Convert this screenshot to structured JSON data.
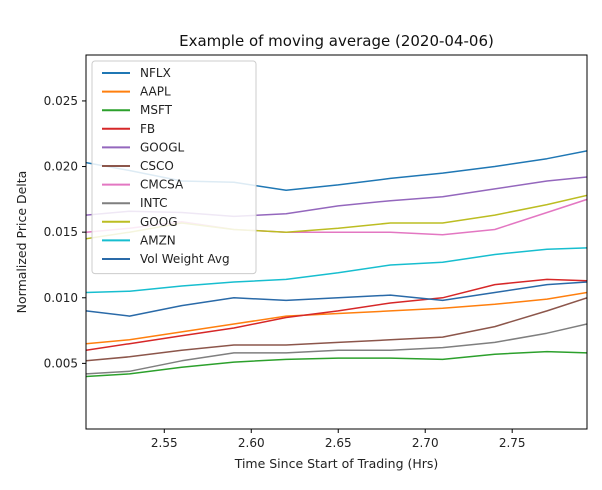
{
  "chart_data": {
    "type": "line",
    "title": "Example of moving average (2020-04-06)",
    "xlabel": "Time Since Start of Trading (Hrs)",
    "ylabel": "Normalized Price Delta",
    "xlim": [
      2.505,
      2.793
    ],
    "ylim": [
      0.0,
      0.0285
    ],
    "xticks": [
      2.55,
      2.6,
      2.65,
      2.7,
      2.75
    ],
    "xtick_labels": [
      "2.55",
      "2.60",
      "2.65",
      "2.70",
      "2.75"
    ],
    "yticks": [
      0.005,
      0.01,
      0.015,
      0.02,
      0.025
    ],
    "ytick_labels": [
      "0.005",
      "0.010",
      "0.015",
      "0.020",
      "0.025"
    ],
    "grid": false,
    "legend_position": "top-left",
    "series": [
      {
        "name": "NFLX",
        "color": "#1f77b4",
        "x": [
          2.505,
          2.53,
          2.56,
          2.59,
          2.62,
          2.65,
          2.68,
          2.71,
          2.74,
          2.77,
          2.793
        ],
        "y": [
          0.0203,
          0.0197,
          0.0189,
          0.0188,
          0.0182,
          0.0186,
          0.0191,
          0.0195,
          0.02,
          0.0206,
          0.0212
        ]
      },
      {
        "name": "AAPL",
        "color": "#ff7f0e",
        "x": [
          2.505,
          2.53,
          2.56,
          2.59,
          2.62,
          2.65,
          2.68,
          2.71,
          2.74,
          2.77,
          2.793
        ],
        "y": [
          0.0065,
          0.0068,
          0.0074,
          0.008,
          0.0086,
          0.0088,
          0.009,
          0.0092,
          0.0095,
          0.0099,
          0.0104
        ]
      },
      {
        "name": "MSFT",
        "color": "#2ca02c",
        "x": [
          2.505,
          2.53,
          2.56,
          2.59,
          2.62,
          2.65,
          2.68,
          2.71,
          2.74,
          2.77,
          2.793
        ],
        "y": [
          0.004,
          0.0042,
          0.0047,
          0.0051,
          0.0053,
          0.0054,
          0.0054,
          0.0053,
          0.0057,
          0.0059,
          0.0058
        ]
      },
      {
        "name": "FB",
        "color": "#d62728",
        "x": [
          2.505,
          2.53,
          2.56,
          2.59,
          2.62,
          2.65,
          2.68,
          2.71,
          2.74,
          2.77,
          2.793
        ],
        "y": [
          0.006,
          0.0065,
          0.0071,
          0.0077,
          0.0085,
          0.009,
          0.0096,
          0.01,
          0.011,
          0.0114,
          0.0113
        ]
      },
      {
        "name": "GOOGL",
        "color": "#9467bd",
        "x": [
          2.505,
          2.53,
          2.56,
          2.59,
          2.62,
          2.65,
          2.68,
          2.71,
          2.74,
          2.77,
          2.793
        ],
        "y": [
          0.0163,
          0.0166,
          0.0165,
          0.0162,
          0.0164,
          0.017,
          0.0174,
          0.0177,
          0.0183,
          0.0189,
          0.0192
        ]
      },
      {
        "name": "CSCO",
        "color": "#8c564b",
        "x": [
          2.505,
          2.53,
          2.56,
          2.59,
          2.62,
          2.65,
          2.68,
          2.71,
          2.74,
          2.77,
          2.793
        ],
        "y": [
          0.0052,
          0.0055,
          0.006,
          0.0064,
          0.0064,
          0.0066,
          0.0068,
          0.007,
          0.0078,
          0.009,
          0.01
        ]
      },
      {
        "name": "CMCSA",
        "color": "#e377c2",
        "x": [
          2.505,
          2.53,
          2.56,
          2.59,
          2.62,
          2.65,
          2.68,
          2.71,
          2.74,
          2.77,
          2.793
        ],
        "y": [
          0.015,
          0.0153,
          0.0158,
          0.0152,
          0.015,
          0.015,
          0.015,
          0.0148,
          0.0152,
          0.0165,
          0.0175
        ]
      },
      {
        "name": "INTC",
        "color": "#7f7f7f",
        "x": [
          2.505,
          2.53,
          2.56,
          2.59,
          2.62,
          2.65,
          2.68,
          2.71,
          2.74,
          2.77,
          2.793
        ],
        "y": [
          0.0042,
          0.0044,
          0.0052,
          0.0058,
          0.0058,
          0.006,
          0.006,
          0.0062,
          0.0066,
          0.0073,
          0.008
        ]
      },
      {
        "name": "GOOG",
        "color": "#bcbd22",
        "x": [
          2.505,
          2.53,
          2.56,
          2.59,
          2.62,
          2.65,
          2.68,
          2.71,
          2.74,
          2.77,
          2.793
        ],
        "y": [
          0.0145,
          0.015,
          0.0157,
          0.0152,
          0.015,
          0.0153,
          0.0157,
          0.0157,
          0.0163,
          0.0171,
          0.0178
        ]
      },
      {
        "name": "AMZN",
        "color": "#17becf",
        "x": [
          2.505,
          2.53,
          2.56,
          2.59,
          2.62,
          2.65,
          2.68,
          2.71,
          2.74,
          2.77,
          2.793
        ],
        "y": [
          0.0104,
          0.0105,
          0.0109,
          0.0112,
          0.0114,
          0.0119,
          0.0125,
          0.0127,
          0.0133,
          0.0137,
          0.0138
        ]
      },
      {
        "name": "Vol Weight Avg",
        "color": "#2a6aa8",
        "x": [
          2.505,
          2.53,
          2.56,
          2.59,
          2.62,
          2.65,
          2.68,
          2.71,
          2.74,
          2.77,
          2.793
        ],
        "y": [
          0.009,
          0.0086,
          0.0094,
          0.01,
          0.0098,
          0.01,
          0.0102,
          0.0098,
          0.0104,
          0.011,
          0.0112
        ]
      }
    ]
  }
}
